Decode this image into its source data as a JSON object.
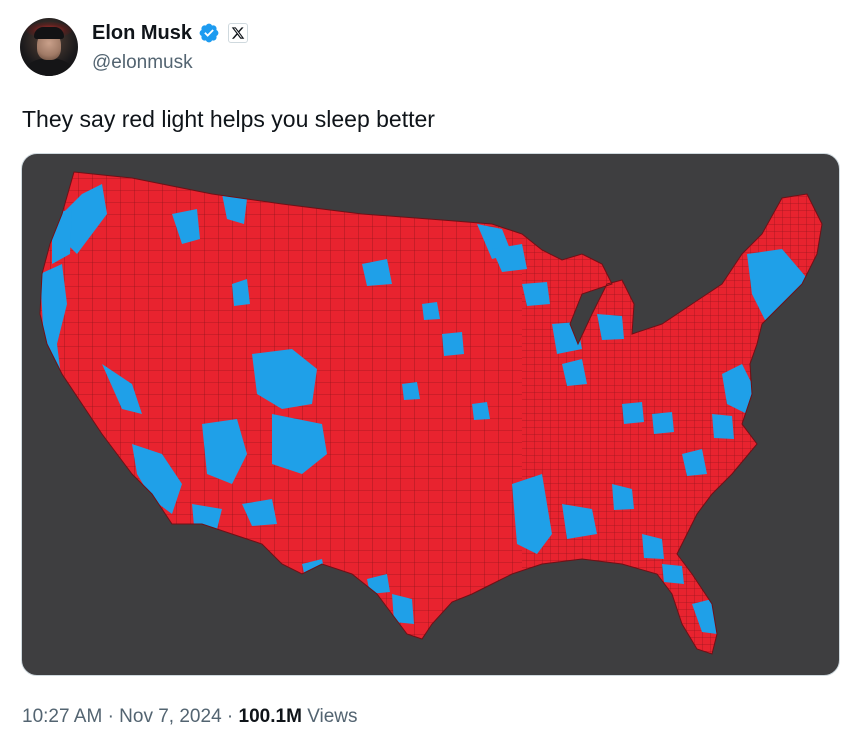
{
  "author": {
    "name": "Elon Musk",
    "handle": "@elonmusk",
    "verified_color": "#1d9bf0"
  },
  "tweet": {
    "text": "They say red light helps you sleep better"
  },
  "media": {
    "description_icon": "us-county-map",
    "colors": {
      "background": "#3e3e40",
      "red": "#e8232f",
      "blue": "#1fa0e8"
    }
  },
  "meta": {
    "time": "10:27 AM",
    "separator": "·",
    "date": "Nov 7, 2024",
    "views_count": "100.1M",
    "views_label": "Views"
  }
}
